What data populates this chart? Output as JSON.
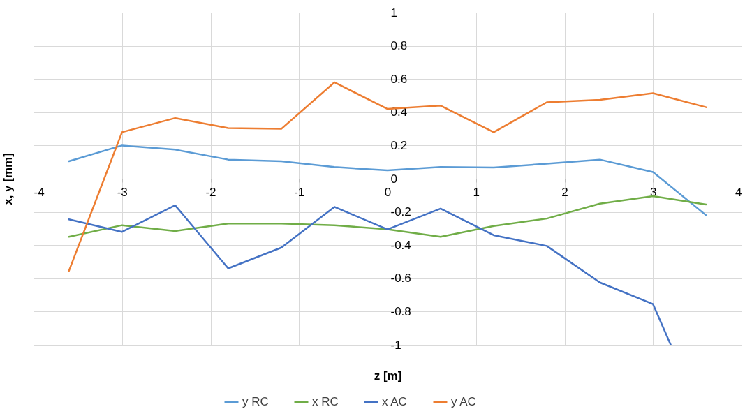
{
  "chart_data": {
    "type": "line",
    "xlabel": "z [m]",
    "ylabel": "x, y [mm]",
    "x": [
      -3.6,
      -3,
      -2.4,
      -1.8,
      -1.2,
      -0.6,
      0,
      0.6,
      1.2,
      1.8,
      2.4,
      3,
      3.6
    ],
    "series": [
      {
        "name": "y RC",
        "color": "#5b9bd5",
        "values": [
          0.105,
          0.2,
          0.175,
          0.115,
          0.105,
          0.07,
          0.05,
          0.07,
          0.067,
          0.09,
          0.115,
          0.04,
          -0.22
        ]
      },
      {
        "name": "x RC",
        "color": "#70ad47",
        "values": [
          -0.35,
          -0.28,
          -0.315,
          -0.27,
          -0.27,
          -0.28,
          -0.305,
          -0.35,
          -0.285,
          -0.24,
          -0.15,
          -0.105,
          -0.155
        ]
      },
      {
        "name": "x AC",
        "color": "#4472c4",
        "x": [
          -3.6,
          -3,
          -2.4,
          -1.8,
          -1.2,
          -0.6,
          0,
          0.6,
          1.2,
          1.8,
          2.4,
          3,
          3.2
        ],
        "values": [
          -0.245,
          -0.32,
          -0.16,
          -0.54,
          -0.415,
          -0.17,
          -0.305,
          -0.18,
          -0.34,
          -0.405,
          -0.625,
          -0.755,
          -1
        ]
      },
      {
        "name": "y AC",
        "color": "#ed7d31",
        "values": [
          -0.555,
          0.28,
          0.365,
          0.305,
          0.3,
          0.58,
          0.42,
          0.44,
          0.28,
          0.46,
          0.475,
          0.515,
          0.43
        ]
      }
    ],
    "xlim": [
      -4,
      4
    ],
    "xticks": [
      -4,
      -3,
      -2,
      -1,
      0,
      1,
      2,
      3,
      4
    ],
    "ylim": [
      -1,
      1
    ],
    "yticks": [
      -1,
      -0.8,
      -0.6,
      -0.4,
      -0.2,
      0,
      0.2,
      0.4,
      0.6,
      0.8,
      1
    ],
    "grid": true,
    "legend": "bottom"
  }
}
